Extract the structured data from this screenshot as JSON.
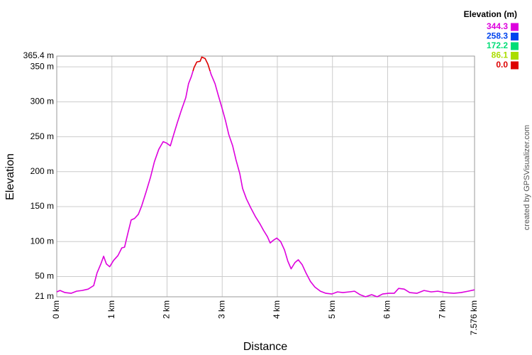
{
  "chart_data": {
    "type": "line",
    "x_label": "Distance",
    "y_label": "Elevation",
    "credit": "created by GPSVisualizer.com",
    "x": [
      0,
      0.06,
      0.15,
      0.26,
      0.36,
      0.46,
      0.57,
      0.67,
      0.73,
      0.8,
      0.85,
      0.9,
      0.96,
      1.03,
      1.11,
      1.18,
      1.23,
      1.29,
      1.35,
      1.41,
      1.48,
      1.54,
      1.62,
      1.7,
      1.77,
      1.85,
      1.93,
      1.99,
      2.06,
      2.12,
      2.19,
      2.26,
      2.34,
      2.39,
      2.44,
      2.49,
      2.54,
      2.6,
      2.63,
      2.69,
      2.74,
      2.8,
      2.87,
      2.93,
      2.99,
      3.06,
      3.12,
      3.19,
      3.25,
      3.32,
      3.37,
      3.44,
      3.52,
      3.6,
      3.68,
      3.75,
      3.82,
      3.87,
      3.93,
      3.99,
      4.06,
      4.13,
      4.19,
      4.25,
      4.32,
      4.38,
      4.45,
      4.52,
      4.6,
      4.68,
      4.78,
      4.88,
      4.99,
      5.09,
      5.19,
      5.3,
      5.4,
      5.5,
      5.6,
      5.71,
      5.81,
      5.91,
      6.02,
      6.12,
      6.2,
      6.3,
      6.4,
      6.53,
      6.66,
      6.79,
      6.91,
      7.04,
      7.2,
      7.33,
      7.46,
      7.576
    ],
    "values": [
      28,
      30,
      27,
      26,
      29,
      30,
      32,
      37,
      55,
      68,
      79,
      68,
      64,
      73,
      80,
      91,
      92,
      112,
      131,
      133,
      139,
      151,
      171,
      192,
      214,
      232,
      243,
      241,
      237,
      253,
      271,
      288,
      306,
      326,
      336,
      349,
      357,
      358,
      364,
      362,
      354,
      339,
      326,
      309,
      293,
      273,
      253,
      237,
      217,
      197,
      176,
      161,
      148,
      136,
      126,
      116,
      107,
      98,
      102,
      105,
      100,
      88,
      72,
      61,
      70,
      74,
      67,
      55,
      43,
      35,
      29,
      26,
      25,
      28,
      27,
      28,
      29,
      24,
      21,
      24,
      21,
      25,
      26,
      26,
      33,
      32,
      27,
      26,
      30,
      28,
      29,
      27,
      26,
      27,
      29,
      31
    ],
    "xlim": [
      0,
      7.576
    ],
    "xticks": [
      {
        "value": 0,
        "label": "0 km"
      },
      {
        "value": 1,
        "label": "1 km"
      },
      {
        "value": 2,
        "label": "2 km"
      },
      {
        "value": 3,
        "label": "3 km"
      },
      {
        "value": 4,
        "label": "4 km"
      },
      {
        "value": 5,
        "label": "5 km"
      },
      {
        "value": 6,
        "label": "6 km"
      },
      {
        "value": 7,
        "label": "7 km"
      },
      {
        "value": 7.576,
        "label": "7.576 km"
      }
    ],
    "ylim": [
      21,
      365.4
    ],
    "yticks": [
      {
        "value": 21,
        "label": "21 m"
      },
      {
        "value": 50,
        "label": "50 m"
      },
      {
        "value": 100,
        "label": "100 m"
      },
      {
        "value": 150,
        "label": "150 m"
      },
      {
        "value": 200,
        "label": "200 m"
      },
      {
        "value": 250,
        "label": "250 m"
      },
      {
        "value": 300,
        "label": "300 m"
      },
      {
        "value": 350,
        "label": "350 m"
      },
      {
        "value": 365.4,
        "label": "365.4 m"
      }
    ],
    "grid": true,
    "colorscale": {
      "title": "Elevation (m)",
      "stops": [
        {
          "value": 344.3,
          "color": "#dd00dd"
        },
        {
          "value": 258.3,
          "color": "#0044ee"
        },
        {
          "value": 172.2,
          "color": "#00dd77"
        },
        {
          "value": 86.1,
          "color": "#aadd00"
        },
        {
          "value": 0,
          "label": "0.0",
          "color": "#dd0000"
        }
      ]
    }
  }
}
